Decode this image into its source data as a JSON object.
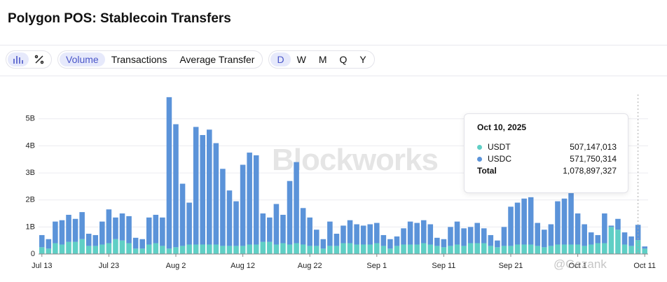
{
  "header": {
    "title": "Polygon POS: Stablecoin Transfers"
  },
  "toolbar": {
    "metrics": [
      "Volume",
      "Transactions",
      "Average Transfer"
    ],
    "periods": [
      "D",
      "W",
      "M",
      "Q",
      "Y"
    ]
  },
  "watermarks": [
    "Blockworks",
    "@Gezank"
  ],
  "tooltip": {
    "date": "Oct 10, 2025",
    "rows": [
      [
        "USDT",
        "507,147,013"
      ],
      [
        "USDC",
        "571,750,314"
      ],
      [
        "Total",
        "1,078,897,327"
      ]
    ]
  },
  "chart_data": {
    "type": "stacked-bar",
    "categories": [
      "Jul 13",
      null,
      null,
      null,
      null,
      null,
      null,
      null,
      null,
      null,
      "Jul 23",
      null,
      null,
      null,
      null,
      null,
      null,
      null,
      null,
      null,
      "Aug 2",
      null,
      null,
      null,
      null,
      null,
      null,
      null,
      null,
      null,
      "Aug 12",
      null,
      null,
      null,
      null,
      null,
      null,
      null,
      null,
      null,
      "Aug 22",
      null,
      null,
      null,
      null,
      null,
      null,
      null,
      null,
      null,
      "Sep 1",
      null,
      null,
      null,
      null,
      null,
      null,
      null,
      null,
      null,
      "Sep 11",
      null,
      null,
      null,
      null,
      null,
      null,
      null,
      null,
      null,
      "Sep 21",
      null,
      null,
      null,
      null,
      null,
      null,
      null,
      null,
      null,
      "Oct 1",
      null,
      null,
      null,
      null,
      null,
      null,
      null,
      null,
      null,
      "Oct 11"
    ],
    "series": [
      {
        "name": "USDT",
        "color": "#5fcfc5",
        "values": [
          0.25,
          0.2,
          0.4,
          0.35,
          0.45,
          0.45,
          0.55,
          0.3,
          0.3,
          0.35,
          0.4,
          0.55,
          0.5,
          0.4,
          0.2,
          0.2,
          0.35,
          0.4,
          0.3,
          0.2,
          0.25,
          0.3,
          0.35,
          0.35,
          0.35,
          0.35,
          0.35,
          0.3,
          0.3,
          0.3,
          0.3,
          0.35,
          0.35,
          0.45,
          0.45,
          0.35,
          0.4,
          0.35,
          0.4,
          0.35,
          0.3,
          0.3,
          0.2,
          0.3,
          0.3,
          0.4,
          0.4,
          0.35,
          0.35,
          0.35,
          0.4,
          0.3,
          0.2,
          0.3,
          0.35,
          0.35,
          0.35,
          0.4,
          0.35,
          0.3,
          0.25,
          0.3,
          0.35,
          0.3,
          0.4,
          0.4,
          0.4,
          0.3,
          0.25,
          0.3,
          0.3,
          0.35,
          0.35,
          0.35,
          0.3,
          0.25,
          0.3,
          0.35,
          0.35,
          0.35,
          0.35,
          0.3,
          0.35,
          0.4,
          0.4,
          1.0,
          0.9,
          0.35,
          0.3,
          0.51,
          0.2
        ]
      },
      {
        "name": "USDC",
        "color": "#5b93d9",
        "values": [
          0.45,
          0.35,
          0.8,
          0.9,
          1.0,
          0.85,
          1.0,
          0.45,
          0.4,
          0.85,
          1.25,
          0.8,
          1.0,
          1.0,
          0.4,
          0.35,
          1.0,
          1.05,
          1.05,
          5.6,
          4.55,
          2.3,
          1.55,
          4.35,
          4.05,
          4.25,
          3.75,
          2.85,
          2.05,
          1.65,
          3.0,
          3.4,
          3.3,
          1.05,
          0.9,
          1.5,
          1.05,
          2.35,
          3.0,
          1.35,
          1.05,
          0.6,
          0.35,
          0.9,
          0.45,
          0.65,
          0.85,
          0.75,
          0.7,
          0.75,
          0.75,
          0.4,
          0.35,
          0.35,
          0.6,
          0.85,
          0.8,
          0.85,
          0.75,
          0.3,
          0.3,
          0.7,
          0.85,
          0.65,
          0.6,
          0.75,
          0.55,
          0.4,
          0.25,
          0.7,
          1.45,
          1.55,
          1.7,
          1.75,
          0.85,
          0.65,
          0.8,
          1.6,
          1.7,
          1.9,
          1.15,
          0.8,
          0.45,
          0.3,
          1.1,
          0.05,
          0.4,
          0.45,
          0.35,
          0.57,
          0.08
        ]
      }
    ],
    "ylim": [
      0,
      5.9
    ],
    "yticks": [
      0,
      {
        "value": 1,
        "label": "1B"
      },
      {
        "value": 2,
        "label": "2B"
      },
      {
        "value": 3,
        "label": "3B"
      },
      {
        "value": 4,
        "label": "4B"
      },
      {
        "value": 5,
        "label": "5B"
      }
    ],
    "grid": true
  }
}
